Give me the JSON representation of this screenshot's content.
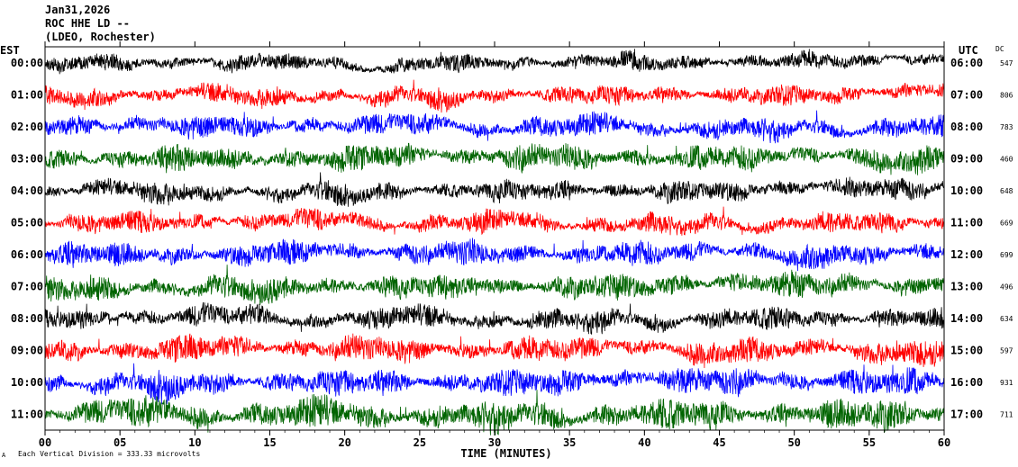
{
  "header": {
    "date": "Jan31,2026",
    "station": "ROC HHE LD --",
    "location": "(LDEO, Rochester)"
  },
  "footnote": "Each Vertical Division = 333.33 microvolts",
  "footmark": "A",
  "chart_data": {
    "type": "line",
    "title": "",
    "xlabel": "TIME (MINUTES)",
    "ylabel_left": "EST",
    "ylabel_right": "UTC",
    "dc_label": "DC",
    "xlim": [
      0,
      60
    ],
    "x_ticks": [
      "00",
      "05",
      "10",
      "15",
      "20",
      "25",
      "30",
      "35",
      "40",
      "45",
      "50",
      "55",
      "60"
    ],
    "rows": [
      {
        "est": "00:00",
        "utc": "06:00",
        "dc": "547",
        "color": "#000000",
        "amp": 0.6
      },
      {
        "est": "01:00",
        "utc": "07:00",
        "dc": "806",
        "color": "#ff0000",
        "amp": 0.7
      },
      {
        "est": "02:00",
        "utc": "08:00",
        "dc": "783",
        "color": "#0000ff",
        "amp": 0.8
      },
      {
        "est": "03:00",
        "utc": "09:00",
        "dc": "460",
        "color": "#006400",
        "amp": 0.9
      },
      {
        "est": "04:00",
        "utc": "10:00",
        "dc": "648",
        "color": "#000000",
        "amp": 0.75
      },
      {
        "est": "05:00",
        "utc": "11:00",
        "dc": "669",
        "color": "#ff0000",
        "amp": 0.75
      },
      {
        "est": "06:00",
        "utc": "12:00",
        "dc": "699",
        "color": "#0000ff",
        "amp": 0.85
      },
      {
        "est": "07:00",
        "utc": "13:00",
        "dc": "496",
        "color": "#006400",
        "amp": 0.9
      },
      {
        "est": "08:00",
        "utc": "14:00",
        "dc": "634",
        "color": "#000000",
        "amp": 0.8
      },
      {
        "est": "09:00",
        "utc": "15:00",
        "dc": "597",
        "color": "#ff0000",
        "amp": 0.9
      },
      {
        "est": "10:00",
        "utc": "16:00",
        "dc": "931",
        "color": "#0000ff",
        "amp": 0.95
      },
      {
        "est": "11:00",
        "utc": "17:00",
        "dc": "711",
        "color": "#006400",
        "amp": 1.1
      }
    ],
    "grid": false,
    "legend": "none"
  }
}
